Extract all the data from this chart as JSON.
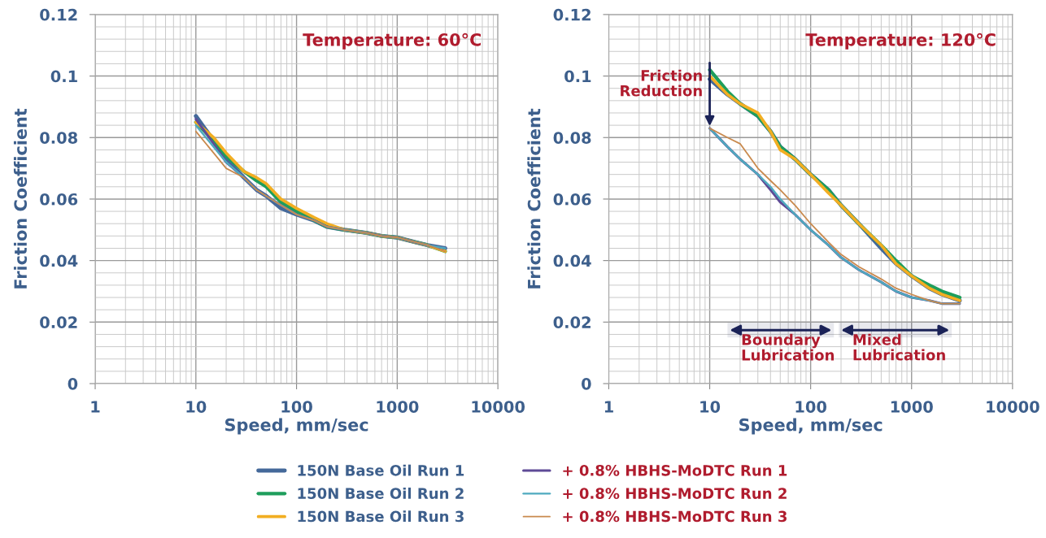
{
  "chart_data": [
    {
      "type": "line",
      "xlabel": "Speed, mm/sec",
      "ylabel": "Friction Coefficient",
      "log": "x",
      "grid": true,
      "legend": "bottom",
      "xlim": [
        1,
        10000
      ],
      "xticks": [
        1,
        10,
        100,
        1000,
        10000
      ],
      "ylim": [
        0,
        0.12
      ],
      "yticks": [
        0,
        0.02,
        0.04,
        0.06,
        0.08,
        0.1,
        0.12
      ],
      "annotations": [
        "Temperature: 60°C"
      ],
      "x": [
        10,
        15,
        20,
        30,
        40,
        50,
        70,
        100,
        150,
        200,
        300,
        500,
        700,
        1000,
        1500,
        2000,
        3000
      ],
      "series": [
        {
          "name": "150N Base Oil Run 1",
          "color": "#44699a",
          "values": [
            0.087,
            0.079,
            0.073,
            0.067,
            0.063,
            0.061,
            0.057,
            0.055,
            0.053,
            0.051,
            0.05,
            0.049,
            0.048,
            0.0475,
            0.046,
            0.045,
            0.044
          ]
        },
        {
          "name": "150N Base Oil Run 2",
          "color": "#1e9e5c",
          "values": [
            0.085,
            0.079,
            0.074,
            0.069,
            0.066,
            0.064,
            0.059,
            0.056,
            0.053,
            0.051,
            0.05,
            0.049,
            0.048,
            0.0475,
            0.046,
            0.045,
            0.043
          ]
        },
        {
          "name": "150N Base Oil Run 3",
          "color": "#f2ae22",
          "values": [
            0.085,
            0.08,
            0.075,
            0.069,
            0.067,
            0.065,
            0.06,
            0.057,
            0.054,
            0.052,
            0.05,
            0.049,
            0.048,
            0.0475,
            0.046,
            0.045,
            0.043
          ]
        },
        {
          "name": "+ 0.8% HBHS-MoDTC Run 1",
          "color": "#5e4a96",
          "values": [
            0.086,
            0.078,
            0.072,
            0.067,
            0.063,
            0.061,
            0.058,
            0.055,
            0.053,
            0.051,
            0.05,
            0.049,
            0.048,
            0.0475,
            0.046,
            0.045,
            0.044
          ]
        },
        {
          "name": "+ 0.8% HBHS-MoDTC Run 2",
          "color": "#4eaabf",
          "values": [
            0.084,
            0.077,
            0.072,
            0.067,
            0.063,
            0.061,
            0.058,
            0.055,
            0.053,
            0.051,
            0.05,
            0.049,
            0.048,
            0.0475,
            0.046,
            0.045,
            0.044
          ]
        },
        {
          "name": "+ 0.8% HBHS-MoDTC Run 3",
          "color": "#c98a4e",
          "values": [
            0.082,
            0.075,
            0.07,
            0.067,
            0.063,
            0.061,
            0.058,
            0.055,
            0.053,
            0.051,
            0.05,
            0.049,
            0.048,
            0.0475,
            0.046,
            0.045,
            0.043
          ]
        }
      ]
    },
    {
      "type": "line",
      "xlabel": "Speed, mm/sec",
      "ylabel": "Friction Coefficient",
      "log": "x",
      "grid": true,
      "xlim": [
        1,
        10000
      ],
      "xticks": [
        1,
        10,
        100,
        1000,
        10000
      ],
      "ylim": [
        0,
        0.12
      ],
      "yticks": [
        0,
        0.02,
        0.04,
        0.06,
        0.08,
        0.1,
        0.12
      ],
      "annotations": [
        "Temperature: 120°C",
        {
          "text": "Friction\nReduction",
          "x": 10,
          "y": 0.083
        }
      ],
      "bands": [
        {
          "axis": "x",
          "from": 15,
          "to": 170,
          "label": "Boundary\nLubrication",
          "color": "#1b2358"
        },
        {
          "axis": "x",
          "from": 190,
          "to": 2500,
          "label": "Mixed\nLubrication",
          "color": "#1b2358"
        }
      ],
      "x": [
        10,
        15,
        20,
        30,
        40,
        50,
        70,
        100,
        150,
        200,
        300,
        500,
        700,
        1000,
        1500,
        2000,
        3000
      ],
      "series": [
        {
          "color": "#44699a",
          "values": [
            0.099,
            0.094,
            0.091,
            0.087,
            0.082,
            0.077,
            0.073,
            0.068,
            0.063,
            0.058,
            0.052,
            0.044,
            0.039,
            0.035,
            0.031,
            0.029,
            0.027
          ]
        },
        {
          "color": "#1e9e5c",
          "values": [
            0.102,
            0.095,
            0.091,
            0.087,
            0.082,
            0.077,
            0.073,
            0.068,
            0.063,
            0.058,
            0.052,
            0.045,
            0.04,
            0.035,
            0.032,
            0.03,
            0.028
          ]
        },
        {
          "color": "#f2ae22",
          "values": [
            0.1,
            0.094,
            0.091,
            0.088,
            0.082,
            0.076,
            0.073,
            0.068,
            0.062,
            0.058,
            0.052,
            0.045,
            0.039,
            0.035,
            0.031,
            0.029,
            0.027
          ]
        },
        {
          "color": "#5e4a96",
          "values": [
            0.083,
            0.077,
            0.073,
            0.068,
            0.063,
            0.059,
            0.055,
            0.05,
            0.045,
            0.041,
            0.037,
            0.033,
            0.03,
            0.028,
            0.027,
            0.026,
            0.026
          ]
        },
        {
          "color": "#4eaabf",
          "values": [
            0.083,
            0.077,
            0.073,
            0.068,
            0.064,
            0.06,
            0.055,
            0.05,
            0.045,
            0.041,
            0.037,
            0.033,
            0.03,
            0.028,
            0.027,
            0.026,
            0.026
          ]
        },
        {
          "color": "#c98a4e",
          "values": [
            0.083,
            0.08,
            0.078,
            0.07,
            0.066,
            0.063,
            0.058,
            0.052,
            0.046,
            0.042,
            0.038,
            0.034,
            0.031,
            0.029,
            0.027,
            0.026,
            0.026
          ]
        }
      ]
    }
  ]
}
